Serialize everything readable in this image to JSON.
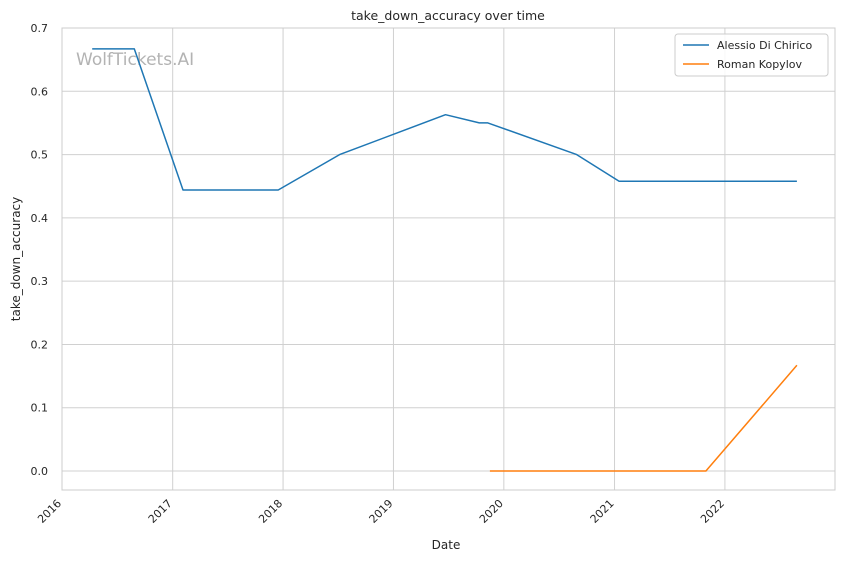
{
  "chart_data": {
    "type": "line",
    "title": "take_down_accuracy over time",
    "xlabel": "Date",
    "ylabel": "take_down_accuracy",
    "watermark": "WolfTickets.AI",
    "xlim": [
      "2016-01-01",
      "2022-12-31"
    ],
    "ylim": [
      -0.03,
      0.7
    ],
    "x_ticks": [
      "2016",
      "2017",
      "2018",
      "2019",
      "2020",
      "2021",
      "2022"
    ],
    "y_ticks": [
      "0.0",
      "0.1",
      "0.2",
      "0.3",
      "0.4",
      "0.5",
      "0.6",
      "0.7"
    ],
    "grid": true,
    "legend_position": "top-right",
    "series": [
      {
        "name": "Alessio Di Chirico",
        "color": "#1f77b4",
        "points": [
          {
            "x": "2016-04-10",
            "y": 0.667
          },
          {
            "x": "2016-08-27",
            "y": 0.667
          },
          {
            "x": "2017-02-04",
            "y": 0.444
          },
          {
            "x": "2017-12-16",
            "y": 0.444
          },
          {
            "x": "2018-07-07",
            "y": 0.5
          },
          {
            "x": "2019-06-22",
            "y": 0.563
          },
          {
            "x": "2019-10-12",
            "y": 0.55
          },
          {
            "x": "2019-11-09",
            "y": 0.55
          },
          {
            "x": "2020-08-29",
            "y": 0.5
          },
          {
            "x": "2021-01-16",
            "y": 0.458
          },
          {
            "x": "2022-08-27",
            "y": 0.458
          }
        ]
      },
      {
        "name": "Roman Kopylov",
        "color": "#ff7f0e",
        "points": [
          {
            "x": "2019-11-16",
            "y": 0.0
          },
          {
            "x": "2021-10-30",
            "y": 0.0
          },
          {
            "x": "2022-08-27",
            "y": 0.167
          }
        ]
      }
    ]
  }
}
